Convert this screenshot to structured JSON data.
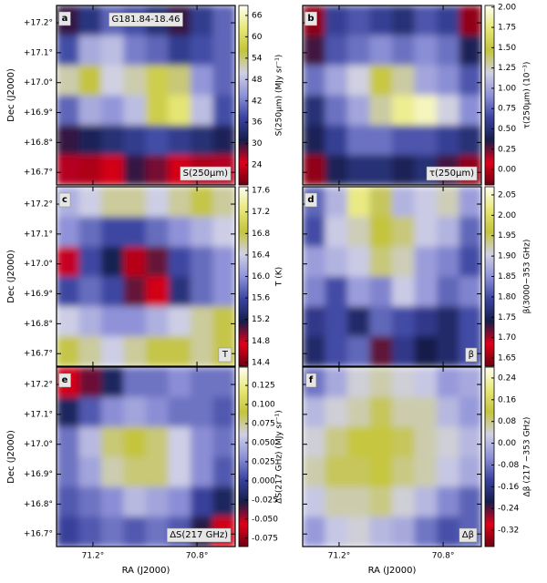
{
  "chart_data": [
    {
      "type": "heatmap",
      "panel_label": "a",
      "title": "G181.84-18.46",
      "annotation": "S(250μm)",
      "colorbar_label": "S(250μm) (MJy sr⁻¹)",
      "y_label": "Dec (J2000)",
      "colormap": [
        "#6b0010",
        "#e0001a",
        "#151d4a",
        "#3a44a0",
        "#8f92d8",
        "#d0d0e6",
        "#c4c43c",
        "#e8e878",
        "#fffff4"
      ],
      "clim": [
        18.4,
        68.8
      ],
      "cticks": [
        66,
        60,
        54,
        48,
        42,
        36,
        30,
        24
      ],
      "xlim": [
        71.34,
        70.653
      ],
      "ylim": [
        16.658,
        17.258
      ],
      "xticks": [
        71.2,
        70.8
      ],
      "yticks": [
        {
          "value": 17.2,
          "label": "+17.2°"
        },
        {
          "value": 17.1,
          "label": "+17.1°"
        },
        {
          "value": 17.0,
          "label": "+17.0°"
        },
        {
          "value": 16.9,
          "label": "+16.9°"
        },
        {
          "value": 16.8,
          "label": "+16.8°"
        },
        {
          "value": 16.7,
          "label": "+16.7°"
        }
      ],
      "z": [
        [
          30,
          35,
          40,
          38,
          34,
          30,
          36,
          40
        ],
        [
          38,
          46,
          48,
          42,
          40,
          36,
          38,
          40
        ],
        [
          52,
          56,
          50,
          52,
          58,
          54,
          44,
          40
        ],
        [
          40,
          46,
          44,
          48,
          58,
          62,
          48,
          38
        ],
        [
          30,
          32,
          34,
          36,
          38,
          36,
          34,
          32
        ],
        [
          26,
          22,
          24,
          30,
          28,
          24,
          22,
          26
        ]
      ]
    },
    {
      "type": "heatmap",
      "panel_label": "b",
      "annotation": "τ(250μm)",
      "colorbar_label": "τ(250μm) (10⁻³)",
      "colormap": [
        "#6b0010",
        "#e0001a",
        "#151d4a",
        "#3a44a0",
        "#8f92d8",
        "#d0d0e6",
        "#c4c43c",
        "#e8e878",
        "#fffff4"
      ],
      "clim": [
        -0.19,
        2.02
      ],
      "cticks": [
        {
          "value": 2.0,
          "label": "2.00"
        },
        1.75,
        {
          "value": 1.5,
          "label": "1.50"
        },
        1.25,
        {
          "value": 1.0,
          "label": "1.00"
        },
        0.75,
        {
          "value": 0.5,
          "label": "0.50"
        },
        0.25,
        {
          "value": 0,
          "label": "0.00"
        }
      ],
      "xlim": [
        71.34,
        70.653
      ],
      "ylim": [
        16.658,
        17.258
      ],
      "xticks": [
        71.2,
        70.8
      ],
      "yticks": [
        17.2,
        17.1,
        17.0,
        16.9,
        16.8,
        16.7
      ],
      "z": [
        [
          -0.1,
          0.6,
          0.7,
          0.6,
          0.5,
          0.7,
          0.6,
          -0.1
        ],
        [
          0.3,
          0.7,
          0.8,
          0.9,
          0.8,
          0.9,
          0.8,
          0.4
        ],
        [
          0.8,
          1.0,
          1.2,
          1.5,
          1.3,
          1.0,
          0.9,
          0.7
        ],
        [
          0.5,
          0.8,
          1.0,
          1.3,
          1.8,
          1.9,
          1.2,
          0.9
        ],
        [
          0.4,
          0.6,
          0.8,
          0.8,
          0.7,
          0.7,
          0.6,
          0.5
        ],
        [
          -0.1,
          0.4,
          0.5,
          0.5,
          0.4,
          0.5,
          0.3,
          -0.1
        ]
      ]
    },
    {
      "type": "heatmap",
      "panel_label": "c",
      "annotation": "T",
      "colorbar_label": "T (K)",
      "y_label": "Dec (J2000)",
      "colormap": [
        "#6b0010",
        "#e0001a",
        "#151d4a",
        "#3a44a0",
        "#8f92d8",
        "#d0d0e6",
        "#c4c43c",
        "#e8e878",
        "#fffff4"
      ],
      "clim": [
        14.33,
        17.67
      ],
      "cticks": [
        17.6,
        17.2,
        16.8,
        16.4,
        {
          "value": 16.0,
          "label": "16.0"
        },
        15.6,
        15.2,
        14.8,
        14.4
      ],
      "xlim": [
        71.34,
        70.653
      ],
      "ylim": [
        16.658,
        17.258
      ],
      "xticks": [
        71.2,
        70.8
      ],
      "yticks": [
        {
          "value": 17.2,
          "label": "+17.2°"
        },
        {
          "value": 17.1,
          "label": "+17.1°"
        },
        {
          "value": 17.0,
          "label": "+17.0°"
        },
        {
          "value": 16.9,
          "label": "+16.9°"
        },
        {
          "value": 16.8,
          "label": "+16.8°"
        },
        {
          "value": 16.7,
          "label": "+16.7°"
        }
      ],
      "z": [
        [
          16.2,
          16.4,
          16.6,
          16.6,
          16.4,
          16.6,
          16.8,
          16.6
        ],
        [
          16.0,
          15.8,
          15.6,
          15.6,
          15.8,
          16.0,
          16.2,
          16.4
        ],
        [
          14.8,
          15.6,
          15.2,
          14.6,
          15.0,
          15.6,
          15.8,
          16.0
        ],
        [
          15.6,
          15.8,
          15.6,
          15.0,
          14.7,
          15.4,
          15.8,
          16.0
        ],
        [
          16.4,
          16.2,
          16.0,
          16.0,
          16.2,
          16.4,
          16.6,
          16.8
        ],
        [
          16.8,
          16.6,
          16.4,
          16.6,
          16.8,
          16.8,
          16.6,
          16.8
        ]
      ]
    },
    {
      "type": "heatmap",
      "panel_label": "d",
      "annotation": "β",
      "colorbar_label": "β(3000−353 GHz)",
      "colormap": [
        "#6b0010",
        "#e0001a",
        "#151d4a",
        "#3a44a0",
        "#8f92d8",
        "#d0d0e6",
        "#c4c43c",
        "#e8e878",
        "#fffff4"
      ],
      "clim": [
        1.63,
        2.07
      ],
      "cticks": [
        2.05,
        {
          "value": 2.0,
          "label": "2.00"
        },
        1.95,
        {
          "value": 1.9,
          "label": "1.90"
        },
        1.85,
        {
          "value": 1.8,
          "label": "1.80"
        },
        1.75,
        {
          "value": 1.7,
          "label": "1.70"
        },
        1.65
      ],
      "xlim": [
        71.34,
        70.653
      ],
      "ylim": [
        16.658,
        17.258
      ],
      "xticks": [
        71.2,
        70.8
      ],
      "yticks": [
        17.2,
        17.1,
        17.0,
        16.9,
        16.8,
        16.7
      ],
      "z": [
        [
          1.82,
          1.88,
          2.02,
          1.95,
          1.88,
          1.9,
          1.92,
          1.86
        ],
        [
          1.8,
          1.9,
          1.92,
          1.96,
          1.94,
          1.9,
          1.88,
          1.82
        ],
        [
          1.86,
          1.88,
          1.9,
          1.94,
          1.92,
          1.86,
          1.84,
          1.8
        ],
        [
          1.84,
          1.8,
          1.86,
          1.84,
          1.9,
          1.86,
          1.82,
          1.84
        ],
        [
          1.78,
          1.8,
          1.76,
          1.82,
          1.8,
          1.78,
          1.76,
          1.8
        ],
        [
          1.76,
          1.8,
          1.82,
          1.72,
          1.78,
          1.74,
          1.76,
          1.8
        ]
      ]
    },
    {
      "type": "heatmap",
      "panel_label": "e",
      "annotation": "ΔS(217 GHz)",
      "colorbar_label": "ΔS(217 GHz) (MJy sr⁻¹)",
      "y_label": "Dec (J2000)",
      "x_label": "RA (J2000)",
      "colormap": [
        "#6b0010",
        "#e0001a",
        "#151d4a",
        "#3a44a0",
        "#8f92d8",
        "#d0d0e6",
        "#c4c43c",
        "#e8e878",
        "#fffff4"
      ],
      "clim": [
        -0.086,
        0.149
      ],
      "cticks": [
        0.125,
        {
          "value": 0.1,
          "label": "0.100"
        },
        0.075,
        {
          "value": 0.05,
          "label": "0.050"
        },
        0.025,
        {
          "value": 0,
          "label": "0.000"
        },
        -0.025,
        {
          "value": -0.05,
          "label": "-0.050"
        },
        -0.075
      ],
      "xlim": [
        71.34,
        70.653
      ],
      "ylim": [
        16.658,
        17.258
      ],
      "xticks": [
        {
          "value": 71.2,
          "label": "71.2°"
        },
        {
          "value": 70.8,
          "label": "70.8°"
        }
      ],
      "yticks": [
        {
          "value": 17.2,
          "label": "+17.2°"
        },
        {
          "value": 17.1,
          "label": "+17.1°"
        },
        {
          "value": 17.0,
          "label": "+17.0°"
        },
        {
          "value": 16.9,
          "label": "+16.9°"
        },
        {
          "value": 16.8,
          "label": "+16.8°"
        },
        {
          "value": 16.7,
          "label": "+16.7°"
        }
      ],
      "z": [
        [
          -0.06,
          -0.04,
          -0.02,
          0.02,
          0.02,
          0.03,
          0.02,
          0.02
        ],
        [
          -0.02,
          0.01,
          0.03,
          0.04,
          0.03,
          0.02,
          0.02,
          0.01
        ],
        [
          0.02,
          0.05,
          0.08,
          0.09,
          0.08,
          0.06,
          0.03,
          0.02
        ],
        [
          0.02,
          0.04,
          0.07,
          0.08,
          0.08,
          0.06,
          0.03,
          0.01
        ],
        [
          0.01,
          0.02,
          0.03,
          0.05,
          0.04,
          0.03,
          0.0,
          -0.02
        ],
        [
          0.0,
          0.01,
          0.02,
          0.01,
          0.02,
          0.01,
          -0.03,
          -0.06
        ]
      ]
    },
    {
      "type": "heatmap",
      "panel_label": "f",
      "annotation": "Δβ",
      "colorbar_label": "Δβ (217 −353 GHz)",
      "x_label": "RA (J2000)",
      "colormap": [
        "#6b0010",
        "#e0001a",
        "#151d4a",
        "#3a44a0",
        "#8f92d8",
        "#d0d0e6",
        "#c4c43c",
        "#e8e878",
        "#fffff4"
      ],
      "clim": [
        -0.38,
        0.28
      ],
      "cticks": [
        0.24,
        0.16,
        0.08,
        {
          "value": 0,
          "label": "0.00"
        },
        -0.08,
        -0.16,
        -0.24,
        -0.32
      ],
      "xlim": [
        71.34,
        70.653
      ],
      "ylim": [
        16.658,
        17.258
      ],
      "xticks": [
        {
          "value": 71.2,
          "label": "71.2°"
        },
        {
          "value": 70.8,
          "label": "70.8°"
        }
      ],
      "yticks": [
        17.2,
        17.1,
        17.0,
        16.9,
        16.8,
        16.7
      ],
      "z": [
        [
          -0.08,
          -0.02,
          0.04,
          0.06,
          0.04,
          0.02,
          -0.04,
          -0.02
        ],
        [
          0.0,
          0.04,
          0.06,
          0.1,
          0.06,
          0.06,
          0.0,
          -0.04
        ],
        [
          0.04,
          0.08,
          0.12,
          0.12,
          0.1,
          0.06,
          0.04,
          0.0
        ],
        [
          0.06,
          0.1,
          0.1,
          0.12,
          0.08,
          0.06,
          0.02,
          -0.02
        ],
        [
          0.02,
          0.06,
          0.06,
          0.08,
          0.04,
          0.0,
          -0.06,
          -0.1
        ],
        [
          -0.04,
          0.02,
          0.04,
          0.0,
          -0.02,
          -0.08,
          -0.12,
          -0.1
        ]
      ]
    }
  ]
}
